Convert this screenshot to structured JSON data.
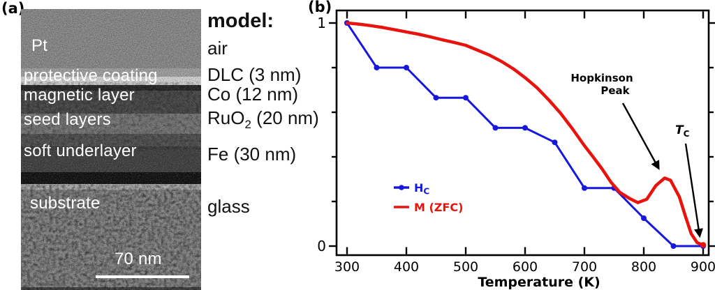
{
  "panel_a": {
    "label": "(a)",
    "layers": [
      {
        "label": "Pt"
      },
      {
        "label": "protective coating"
      },
      {
        "label": "magnetic layer"
      },
      {
        "label": "seed layers"
      },
      {
        "label": "soft underlayer"
      },
      {
        "label": "substrate"
      }
    ],
    "scale_bar_label": "70 nm"
  },
  "model_column": {
    "title": "model:",
    "items": [
      {
        "pre": "air",
        "sub": "",
        "post": ""
      },
      {
        "pre": "DLC (3 nm)",
        "sub": "",
        "post": ""
      },
      {
        "pre": "Co (12 nm)",
        "sub": "",
        "post": ""
      },
      {
        "pre": "RuO",
        "sub": "2",
        "post": " (20 nm)"
      },
      {
        "pre": "Fe (30 nm)",
        "sub": "",
        "post": ""
      },
      {
        "pre": "glass",
        "sub": "",
        "post": ""
      }
    ]
  },
  "panel_b": {
    "label": "(b)"
  },
  "chart_data": {
    "type": "line",
    "title": "",
    "xlabel": "Temperature (K)",
    "ylabel": "",
    "xlim": [
      270,
      915
    ],
    "ylim": [
      0,
      1.07
    ],
    "grid": false,
    "legend_position": "lower-left-inside",
    "x_ticks": [
      300,
      400,
      500,
      600,
      700,
      800,
      900
    ],
    "y_ticks_minor": [
      0.2,
      0.4,
      0.6,
      0.8
    ],
    "y_tick_labels": [
      {
        "value": 0,
        "label": "0"
      },
      {
        "value": 1,
        "label": "1"
      }
    ],
    "series": [
      {
        "name": "HC",
        "color": "#1717dd",
        "width": 3,
        "marker": true,
        "end_dot": false,
        "x": [
          300,
          350,
          400,
          450,
          500,
          550,
          600,
          650,
          700,
          750,
          800,
          850,
          900
        ],
        "values": [
          1.0,
          0.8,
          0.8,
          0.665,
          0.665,
          0.53,
          0.53,
          0.465,
          0.26,
          0.26,
          0.125,
          0.0,
          0.0
        ]
      },
      {
        "name": "M (ZFC)",
        "color": "#e8130c",
        "width": 4.5,
        "marker": false,
        "end_dot": true,
        "x": [
          300,
          320,
          340,
          360,
          380,
          400,
          420,
          440,
          460,
          480,
          500,
          520,
          540,
          560,
          580,
          600,
          620,
          640,
          660,
          680,
          700,
          715,
          730,
          745,
          760,
          775,
          790,
          805,
          820,
          835,
          845,
          860,
          870,
          880,
          890,
          900
        ],
        "values": [
          1.0,
          0.995,
          0.988,
          0.98,
          0.97,
          0.96,
          0.95,
          0.938,
          0.925,
          0.913,
          0.9,
          0.878,
          0.856,
          0.828,
          0.795,
          0.755,
          0.71,
          0.655,
          0.595,
          0.525,
          0.45,
          0.398,
          0.345,
          0.285,
          0.24,
          0.215,
          0.195,
          0.21,
          0.27,
          0.305,
          0.295,
          0.22,
          0.135,
          0.055,
          0.015,
          0.005
        ]
      }
    ],
    "legend": [
      {
        "main": "H",
        "sub": "C",
        "color": "#1717dd",
        "marker": true
      },
      {
        "main": "M (ZFC)",
        "sub": "",
        "color": "#e8130c",
        "marker": false
      }
    ],
    "annotations": {
      "hopkinson_line1": "Hopkinson",
      "hopkinson_line2": "Peak",
      "tc_main": "T",
      "tc_sub": "C",
      "hopkinson_points_at_T": 835,
      "tc_points_at_T": 900
    }
  }
}
